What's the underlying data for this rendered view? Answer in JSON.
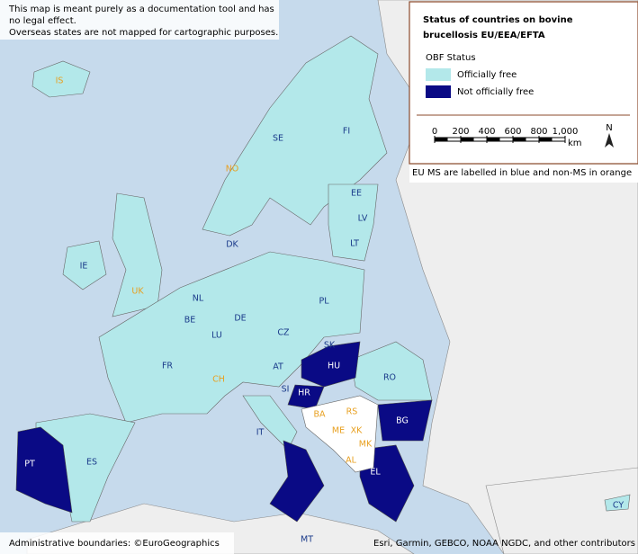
{
  "disclaimer": [
    "This map is meant purely as a documentation tool and has",
    "no legal effect.",
    "Overseas states are not mapped for cartographic purposes."
  ],
  "legend": {
    "title": [
      "Status of countries on bovine",
      "brucellosis EU/EEA/EFTA"
    ],
    "subtitle": "OBF Status",
    "items": [
      {
        "label": "Officially free",
        "color": "#b3e8ea"
      },
      {
        "label": "Not officially free",
        "color": "#0a0a85"
      }
    ]
  },
  "scale": {
    "ticks": [
      0,
      200,
      400,
      600,
      800,
      {
        "value": 1000,
        "label": "1,000"
      }
    ],
    "unit": "km",
    "north": "N"
  },
  "note": "EU MS are labelled in blue and non-MS in orange",
  "countries": [
    {
      "label": "IS",
      "color": "#e8a020"
    },
    {
      "label": "NO",
      "color": "#e8a020"
    },
    {
      "label": "SE",
      "color": "#1a3a8a"
    },
    {
      "label": "FI",
      "color": "#1a3a8a"
    },
    {
      "label": "EE",
      "color": "#1a3a8a"
    },
    {
      "label": "LV",
      "color": "#1a3a8a"
    },
    {
      "label": "LT",
      "color": "#1a3a8a"
    },
    {
      "label": "DK",
      "color": "#1a3a8a"
    },
    {
      "label": "IE",
      "color": "#1a3a8a"
    },
    {
      "label": "UK",
      "color": "#e8a020"
    },
    {
      "label": "NL",
      "color": "#1a3a8a"
    },
    {
      "label": "BE",
      "color": "#1a3a8a"
    },
    {
      "label": "LU",
      "color": "#1a3a8a"
    },
    {
      "label": "DE",
      "color": "#1a3a8a"
    },
    {
      "label": "PL",
      "color": "#1a3a8a"
    },
    {
      "label": "CZ",
      "color": "#1a3a8a"
    },
    {
      "label": "SK",
      "color": "#1a3a8a"
    },
    {
      "label": "HU",
      "color": "#ffffff"
    },
    {
      "label": "AT",
      "color": "#1a3a8a"
    },
    {
      "label": "CH",
      "color": "#e8a020"
    },
    {
      "label": "FR",
      "color": "#1a3a8a"
    },
    {
      "label": "SI",
      "color": "#1a3a8a"
    },
    {
      "label": "HR",
      "color": "#ffffff"
    },
    {
      "label": "RO",
      "color": "#1a3a8a"
    },
    {
      "label": "BA",
      "color": "#e8a020"
    },
    {
      "label": "RS",
      "color": "#e8a020"
    },
    {
      "label": "BG",
      "color": "#ffffff"
    },
    {
      "label": "ME",
      "color": "#e8a020"
    },
    {
      "label": "XK",
      "color": "#e8a020"
    },
    {
      "label": "MK",
      "color": "#e8a020"
    },
    {
      "label": "AL",
      "color": "#e8a020"
    },
    {
      "label": "EL",
      "color": "#ffffff"
    },
    {
      "label": "IT",
      "color": "#1a3a8a"
    },
    {
      "label": "ES",
      "color": "#1a3a8a"
    },
    {
      "label": "PT",
      "color": "#ffffff"
    },
    {
      "label": "MT",
      "color": "#1a3a8a"
    },
    {
      "label": "CY",
      "color": "#1a3a8a"
    }
  ],
  "credits": {
    "left": "Administrative boundaries: ©EuroGeographics",
    "right": "Esri, Garmin, GEBCO, NOAA NGDC, and other contributors"
  }
}
